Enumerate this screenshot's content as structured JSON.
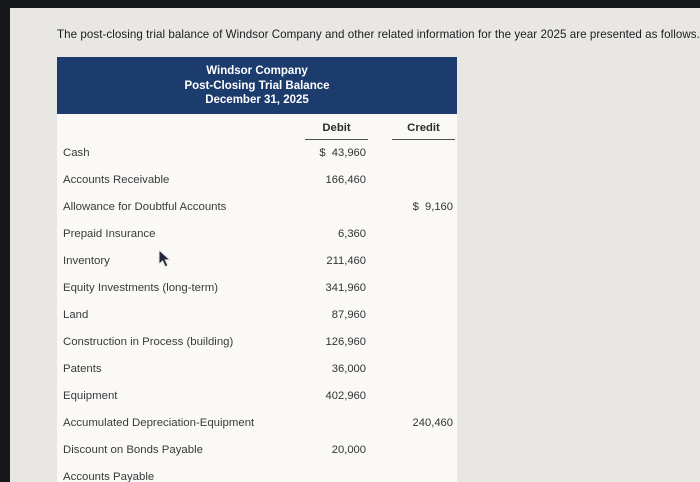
{
  "page": {
    "intro_text": "The post-closing trial balance of Windsor Company and other related information for the year 2025 are presented as follows."
  },
  "table": {
    "title_lines": [
      "Windsor Company",
      "Post-Closing Trial Balance",
      "December 31, 2025"
    ],
    "columns": [
      "Debit",
      "Credit"
    ],
    "rows": [
      {
        "account": "Cash",
        "debit": "$  43,960",
        "credit": ""
      },
      {
        "account": "Accounts Receivable",
        "debit": "166,460",
        "credit": ""
      },
      {
        "account": "Allowance for Doubtful Accounts",
        "debit": "",
        "credit": "$  9,160"
      },
      {
        "account": "Prepaid Insurance",
        "debit": "6,360",
        "credit": ""
      },
      {
        "account": "Inventory",
        "debit": "211,460",
        "credit": ""
      },
      {
        "account": "Equity Investments (long-term)",
        "debit": "341,960",
        "credit": ""
      },
      {
        "account": "Land",
        "debit": "87,960",
        "credit": ""
      },
      {
        "account": "Construction in Process (building)",
        "debit": "126,960",
        "credit": ""
      },
      {
        "account": "Patents",
        "debit": "36,000",
        "credit": ""
      },
      {
        "account": "Equipment",
        "debit": "402,960",
        "credit": ""
      },
      {
        "account": "Accumulated Depreciation-Equipment",
        "debit": "",
        "credit": "240,460"
      },
      {
        "account": "Discount on Bonds Payable",
        "debit": "20,000",
        "credit": ""
      },
      {
        "account": "Accounts Payable",
        "debit": "",
        "credit": ""
      }
    ]
  },
  "colors": {
    "header_bg": "#1d3c6e",
    "header_text": "#ffffff",
    "page_bg": "#e9e7e3",
    "panel_bg": "#faf9f6",
    "edge_bg": "#17181c"
  }
}
